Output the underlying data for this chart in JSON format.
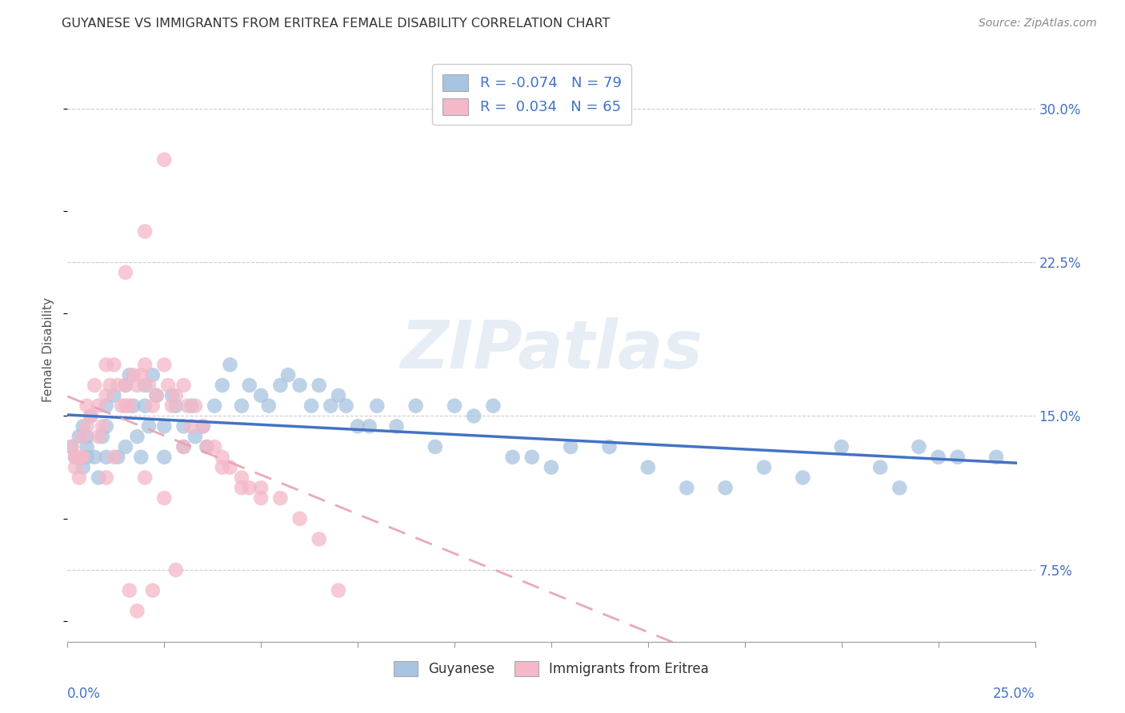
{
  "title": "GUYANESE VS IMMIGRANTS FROM ERITREA FEMALE DISABILITY CORRELATION CHART",
  "source": "Source: ZipAtlas.com",
  "ylabel": "Female Disability",
  "xlim": [
    0.0,
    0.25
  ],
  "ylim": [
    0.04,
    0.325
  ],
  "blue_color": "#a8c4e0",
  "pink_color": "#f4b8c8",
  "blue_line_color": "#4472C4",
  "pink_line_color": "#e8a0b0",
  "legend1": "Guyanese",
  "legend2": "Immigrants from Eritrea",
  "blue_R": -0.074,
  "blue_N": 79,
  "pink_R": 0.034,
  "pink_N": 65,
  "ytick_vals": [
    0.075,
    0.15,
    0.225,
    0.3
  ],
  "ytick_labels": [
    "7.5%",
    "15.0%",
    "22.5%",
    "30.0%"
  ],
  "blue_x": [
    0.001,
    0.002,
    0.003,
    0.004,
    0.004,
    0.005,
    0.005,
    0.005,
    0.006,
    0.007,
    0.008,
    0.009,
    0.01,
    0.01,
    0.01,
    0.012,
    0.013,
    0.015,
    0.015,
    0.016,
    0.017,
    0.018,
    0.019,
    0.02,
    0.02,
    0.021,
    0.022,
    0.023,
    0.025,
    0.025,
    0.027,
    0.028,
    0.03,
    0.03,
    0.032,
    0.033,
    0.035,
    0.036,
    0.038,
    0.04,
    0.042,
    0.045,
    0.047,
    0.05,
    0.052,
    0.055,
    0.057,
    0.06,
    0.063,
    0.065,
    0.068,
    0.07,
    0.072,
    0.075,
    0.078,
    0.08,
    0.085,
    0.09,
    0.095,
    0.1,
    0.105,
    0.11,
    0.115,
    0.12,
    0.125,
    0.13,
    0.14,
    0.15,
    0.16,
    0.17,
    0.18,
    0.19,
    0.2,
    0.21,
    0.215,
    0.22,
    0.225,
    0.23,
    0.24
  ],
  "blue_y": [
    0.135,
    0.13,
    0.14,
    0.125,
    0.145,
    0.13,
    0.14,
    0.135,
    0.15,
    0.13,
    0.12,
    0.14,
    0.155,
    0.13,
    0.145,
    0.16,
    0.13,
    0.165,
    0.135,
    0.17,
    0.155,
    0.14,
    0.13,
    0.165,
    0.155,
    0.145,
    0.17,
    0.16,
    0.145,
    0.13,
    0.16,
    0.155,
    0.145,
    0.135,
    0.155,
    0.14,
    0.145,
    0.135,
    0.155,
    0.165,
    0.175,
    0.155,
    0.165,
    0.16,
    0.155,
    0.165,
    0.17,
    0.165,
    0.155,
    0.165,
    0.155,
    0.16,
    0.155,
    0.145,
    0.145,
    0.155,
    0.145,
    0.155,
    0.135,
    0.155,
    0.15,
    0.155,
    0.13,
    0.13,
    0.125,
    0.135,
    0.135,
    0.125,
    0.115,
    0.115,
    0.125,
    0.12,
    0.135,
    0.125,
    0.115,
    0.135,
    0.13,
    0.13,
    0.13
  ],
  "pink_x": [
    0.001,
    0.002,
    0.002,
    0.003,
    0.003,
    0.004,
    0.004,
    0.005,
    0.005,
    0.006,
    0.007,
    0.008,
    0.008,
    0.009,
    0.01,
    0.01,
    0.011,
    0.012,
    0.013,
    0.014,
    0.015,
    0.015,
    0.016,
    0.017,
    0.018,
    0.019,
    0.02,
    0.021,
    0.022,
    0.023,
    0.025,
    0.026,
    0.027,
    0.028,
    0.03,
    0.031,
    0.032,
    0.033,
    0.035,
    0.036,
    0.038,
    0.04,
    0.042,
    0.045,
    0.047,
    0.05,
    0.055,
    0.06,
    0.065,
    0.07,
    0.02,
    0.015,
    0.025,
    0.03,
    0.01,
    0.04,
    0.045,
    0.05,
    0.012,
    0.02,
    0.025,
    0.016,
    0.018,
    0.022,
    0.028
  ],
  "pink_y": [
    0.135,
    0.13,
    0.125,
    0.13,
    0.12,
    0.14,
    0.13,
    0.155,
    0.145,
    0.15,
    0.165,
    0.155,
    0.14,
    0.145,
    0.175,
    0.16,
    0.165,
    0.175,
    0.165,
    0.155,
    0.155,
    0.165,
    0.155,
    0.17,
    0.165,
    0.17,
    0.175,
    0.165,
    0.155,
    0.16,
    0.175,
    0.165,
    0.155,
    0.16,
    0.165,
    0.155,
    0.145,
    0.155,
    0.145,
    0.135,
    0.135,
    0.13,
    0.125,
    0.12,
    0.115,
    0.115,
    0.11,
    0.1,
    0.09,
    0.065,
    0.24,
    0.22,
    0.275,
    0.135,
    0.12,
    0.125,
    0.115,
    0.11,
    0.13,
    0.12,
    0.11,
    0.065,
    0.055,
    0.065,
    0.075
  ]
}
